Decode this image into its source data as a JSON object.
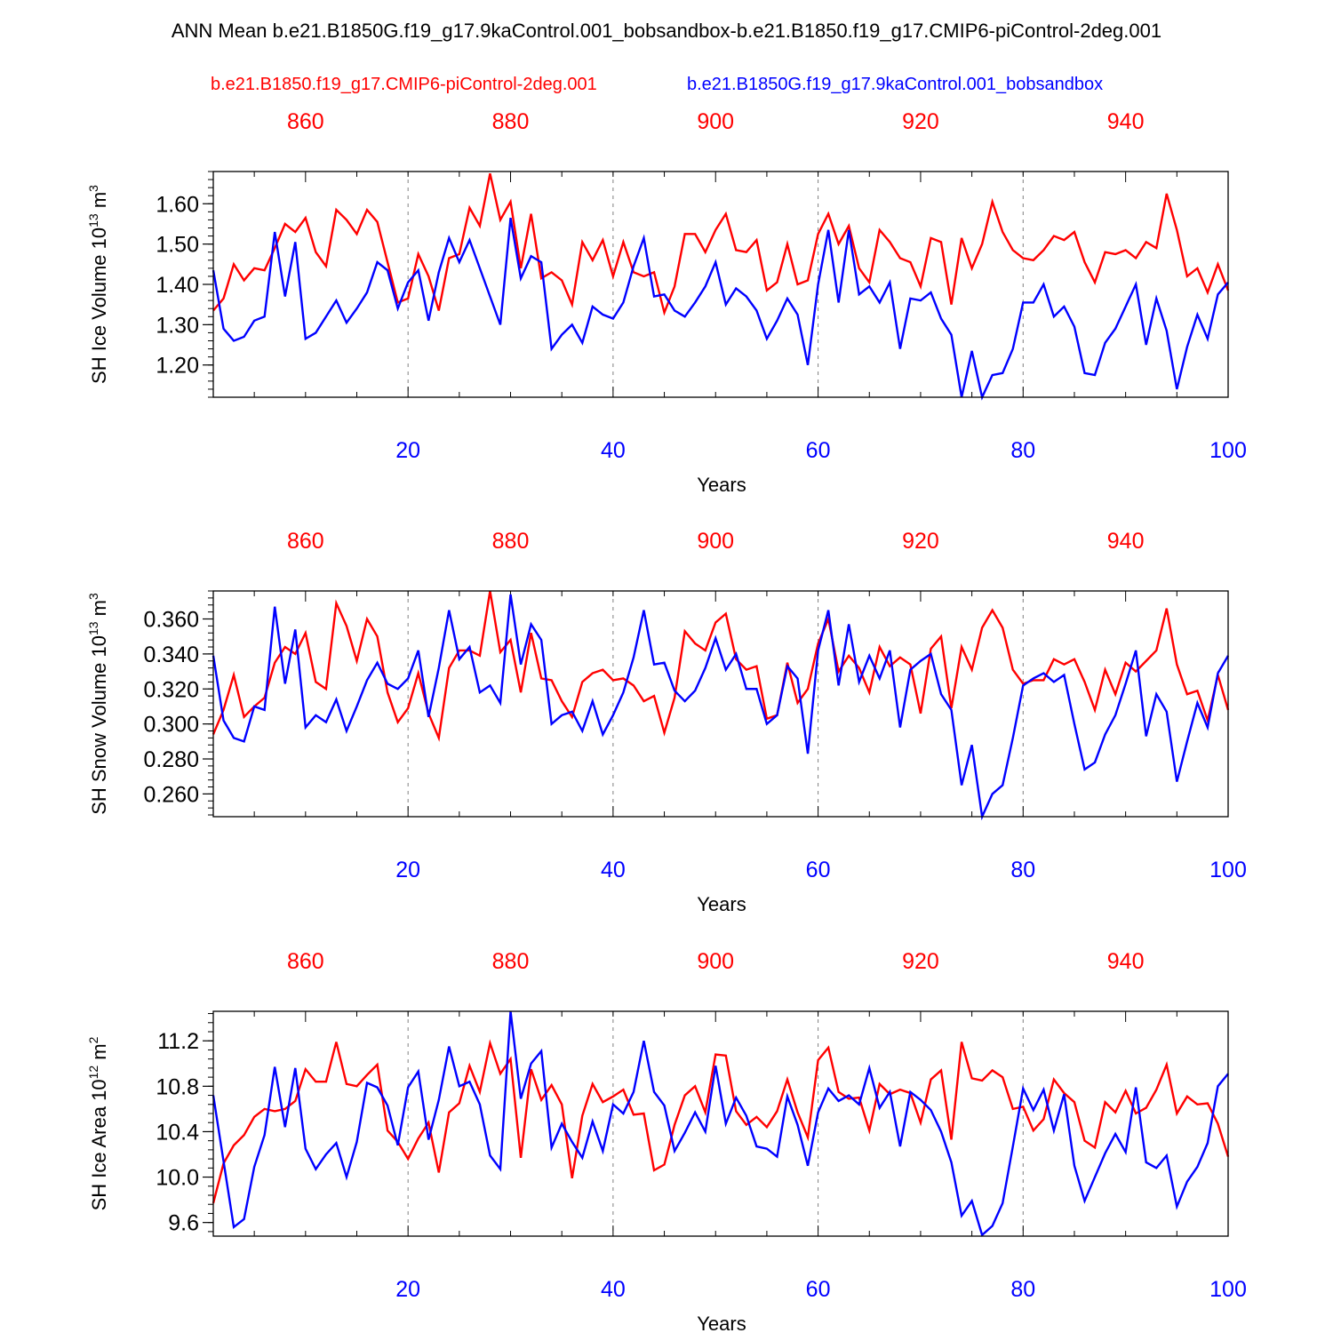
{
  "title": "ANN Mean b.e21.B1850G.f19_g17.9kaControl.001_bobsandbox-b.e21.B1850.f19_g17.CMIP6-piControl-2deg.001",
  "legend": {
    "red_label": "b.e21.B1850.f19_g17.CMIP6-piControl-2deg.001",
    "blue_label": "b.e21.B1850G.f19_g17.9kaControl.001_bobsandbox"
  },
  "colors": {
    "red": "#ff0000",
    "blue": "#0000ff",
    "grid": "#808080",
    "axis": "#000000"
  },
  "chart_data": [
    {
      "type": "line",
      "title": "",
      "ylabel": "SH Ice Volume 10",
      "ylabel_exp": "13",
      "ylabel_unit": "m",
      "ylabel_unit_exp": "3",
      "xlabel": "Years",
      "xlim": [
        1,
        100
      ],
      "ylim": [
        1.12,
        1.68
      ],
      "x_ticks": [
        20,
        40,
        60,
        80,
        100
      ],
      "x_ticks_top": [
        860,
        880,
        900,
        920,
        940
      ],
      "y_ticks": [
        "1.20",
        "1.30",
        "1.40",
        "1.50",
        "1.60"
      ],
      "series": [
        {
          "name": "b.e21.B1850.f19_g17.CMIP6-piControl-2deg.001",
          "color": "red",
          "values": [
            1.335,
            1.365,
            1.45,
            1.41,
            1.44,
            1.435,
            1.49,
            1.55,
            1.53,
            1.565,
            1.48,
            1.445,
            1.585,
            1.56,
            1.525,
            1.585,
            1.555,
            1.455,
            1.355,
            1.365,
            1.475,
            1.42,
            1.335,
            1.465,
            1.475,
            1.59,
            1.545,
            1.675,
            1.56,
            1.605,
            1.44,
            1.575,
            1.415,
            1.43,
            1.41,
            1.35,
            1.505,
            1.46,
            1.51,
            1.42,
            1.505,
            1.43,
            1.42,
            1.43,
            1.33,
            1.395,
            1.525,
            1.525,
            1.48,
            1.535,
            1.575,
            1.485,
            1.48,
            1.51,
            1.385,
            1.405,
            1.5,
            1.4,
            1.41,
            1.525,
            1.575,
            1.5,
            1.545,
            1.44,
            1.405,
            1.535,
            1.505,
            1.465,
            1.455,
            1.395,
            1.515,
            1.505,
            1.35,
            1.515,
            1.44,
            1.5,
            1.605,
            1.53,
            1.485,
            1.465,
            1.46,
            1.485,
            1.52,
            1.51,
            1.53,
            1.455,
            1.405,
            1.48,
            1.475,
            1.485,
            1.465,
            1.505,
            1.49,
            1.625,
            1.535,
            1.42,
            1.44,
            1.38,
            1.45,
            1.385
          ]
        },
        {
          "name": "b.e21.B1850G.f19_g17.9kaControl.001_bobsandbox",
          "color": "blue",
          "values": [
            1.435,
            1.29,
            1.26,
            1.27,
            1.31,
            1.32,
            1.53,
            1.37,
            1.505,
            1.265,
            1.28,
            1.32,
            1.36,
            1.305,
            1.34,
            1.38,
            1.455,
            1.435,
            1.34,
            1.405,
            1.435,
            1.31,
            1.43,
            1.515,
            1.455,
            1.51,
            1.44,
            1.37,
            1.3,
            1.565,
            1.415,
            1.47,
            1.455,
            1.24,
            1.275,
            1.3,
            1.255,
            1.345,
            1.325,
            1.315,
            1.355,
            1.445,
            1.515,
            1.37,
            1.375,
            1.335,
            1.32,
            1.355,
            1.395,
            1.455,
            1.35,
            1.39,
            1.37,
            1.335,
            1.265,
            1.31,
            1.365,
            1.325,
            1.2,
            1.4,
            1.535,
            1.355,
            1.535,
            1.375,
            1.395,
            1.355,
            1.405,
            1.24,
            1.365,
            1.36,
            1.38,
            1.315,
            1.275,
            1.12,
            1.235,
            1.12,
            1.175,
            1.18,
            1.24,
            1.355,
            1.355,
            1.4,
            1.32,
            1.345,
            1.295,
            1.18,
            1.175,
            1.255,
            1.29,
            1.345,
            1.4,
            1.25,
            1.365,
            1.285,
            1.14,
            1.245,
            1.325,
            1.265,
            1.375,
            1.405
          ]
        }
      ]
    },
    {
      "type": "line",
      "title": "",
      "ylabel": "SH Snow Volume 10",
      "ylabel_exp": "13",
      "ylabel_unit": "m",
      "ylabel_unit_exp": "3",
      "xlabel": "Years",
      "xlim": [
        1,
        100
      ],
      "ylim": [
        0.247,
        0.376
      ],
      "x_ticks": [
        20,
        40,
        60,
        80,
        100
      ],
      "x_ticks_top": [
        860,
        880,
        900,
        920,
        940
      ],
      "y_ticks": [
        "0.260",
        "0.280",
        "0.300",
        "0.320",
        "0.340",
        "0.360"
      ],
      "series": [
        {
          "name": "b.e21.B1850.f19_g17.CMIP6-piControl-2deg.001",
          "color": "red",
          "values": [
            0.294,
            0.308,
            0.328,
            0.304,
            0.31,
            0.315,
            0.335,
            0.344,
            0.34,
            0.352,
            0.324,
            0.32,
            0.369,
            0.356,
            0.336,
            0.36,
            0.35,
            0.318,
            0.301,
            0.309,
            0.329,
            0.306,
            0.292,
            0.332,
            0.342,
            0.342,
            0.339,
            0.376,
            0.341,
            0.348,
            0.318,
            0.352,
            0.326,
            0.325,
            0.313,
            0.304,
            0.324,
            0.329,
            0.331,
            0.325,
            0.326,
            0.322,
            0.313,
            0.316,
            0.295,
            0.315,
            0.353,
            0.346,
            0.342,
            0.358,
            0.363,
            0.337,
            0.331,
            0.333,
            0.303,
            0.305,
            0.335,
            0.312,
            0.32,
            0.346,
            0.36,
            0.33,
            0.339,
            0.332,
            0.318,
            0.344,
            0.333,
            0.338,
            0.334,
            0.306,
            0.343,
            0.35,
            0.309,
            0.344,
            0.331,
            0.355,
            0.365,
            0.355,
            0.331,
            0.323,
            0.325,
            0.325,
            0.337,
            0.334,
            0.337,
            0.324,
            0.308,
            0.331,
            0.317,
            0.335,
            0.33,
            0.336,
            0.342,
            0.366,
            0.334,
            0.317,
            0.319,
            0.302,
            0.328,
            0.308
          ]
        },
        {
          "name": "b.e21.B1850G.f19_g17.9kaControl.001_bobsandbox",
          "color": "blue",
          "values": [
            0.339,
            0.302,
            0.292,
            0.29,
            0.31,
            0.308,
            0.367,
            0.323,
            0.354,
            0.298,
            0.305,
            0.301,
            0.314,
            0.296,
            0.31,
            0.325,
            0.335,
            0.323,
            0.32,
            0.326,
            0.342,
            0.304,
            0.332,
            0.365,
            0.337,
            0.344,
            0.318,
            0.322,
            0.312,
            0.374,
            0.334,
            0.357,
            0.348,
            0.3,
            0.305,
            0.307,
            0.296,
            0.313,
            0.294,
            0.305,
            0.318,
            0.338,
            0.365,
            0.334,
            0.335,
            0.319,
            0.313,
            0.319,
            0.332,
            0.349,
            0.331,
            0.34,
            0.32,
            0.32,
            0.3,
            0.305,
            0.333,
            0.326,
            0.283,
            0.342,
            0.365,
            0.322,
            0.357,
            0.324,
            0.339,
            0.326,
            0.342,
            0.298,
            0.331,
            0.336,
            0.34,
            0.317,
            0.308,
            0.265,
            0.288,
            0.247,
            0.26,
            0.265,
            0.292,
            0.322,
            0.326,
            0.329,
            0.324,
            0.328,
            0.3,
            0.274,
            0.278,
            0.294,
            0.305,
            0.323,
            0.342,
            0.293,
            0.317,
            0.307,
            0.267,
            0.29,
            0.312,
            0.298,
            0.329,
            0.339
          ]
        }
      ]
    },
    {
      "type": "line",
      "title": "",
      "ylabel": "SH Ice Area 10",
      "ylabel_exp": "12",
      "ylabel_unit": "m",
      "ylabel_unit_exp": "2",
      "xlabel": "Years",
      "xlim": [
        1,
        100
      ],
      "ylim": [
        9.48,
        11.46
      ],
      "x_ticks": [
        20,
        40,
        60,
        80,
        100
      ],
      "x_ticks_top": [
        860,
        880,
        900,
        920,
        940
      ],
      "y_ticks": [
        "9.6",
        "10.0",
        "10.4",
        "10.8",
        "11.2"
      ],
      "series": [
        {
          "name": "b.e21.B1850.f19_g17.CMIP6-piControl-2deg.001",
          "color": "red",
          "values": [
            9.77,
            10.12,
            10.28,
            10.37,
            10.53,
            10.6,
            10.58,
            10.6,
            10.67,
            10.95,
            10.84,
            10.84,
            11.19,
            10.82,
            10.8,
            10.9,
            10.99,
            10.41,
            10.31,
            10.16,
            10.34,
            10.48,
            10.04,
            10.57,
            10.65,
            10.98,
            10.75,
            11.18,
            10.91,
            11.04,
            10.17,
            10.95,
            10.68,
            10.81,
            10.64,
            9.99,
            10.54,
            10.82,
            10.66,
            10.71,
            10.77,
            10.55,
            10.56,
            10.06,
            10.11,
            10.46,
            10.72,
            10.8,
            10.57,
            11.08,
            11.07,
            10.58,
            10.46,
            10.53,
            10.44,
            10.58,
            10.86,
            10.57,
            10.35,
            11.03,
            11.14,
            10.75,
            10.69,
            10.7,
            10.41,
            10.82,
            10.73,
            10.77,
            10.74,
            10.48,
            10.86,
            10.94,
            10.33,
            11.19,
            10.87,
            10.85,
            10.94,
            10.88,
            10.6,
            10.62,
            10.41,
            10.51,
            10.86,
            10.74,
            10.66,
            10.32,
            10.26,
            10.66,
            10.57,
            10.76,
            10.56,
            10.61,
            10.77,
            10.99,
            10.56,
            10.71,
            10.64,
            10.65,
            10.47,
            10.18
          ]
        },
        {
          "name": "b.e21.B1850G.f19_g17.9kaControl.001_bobsandbox",
          "color": "blue",
          "values": [
            10.72,
            10.14,
            9.56,
            9.63,
            10.09,
            10.37,
            10.97,
            10.44,
            10.96,
            10.25,
            10.07,
            10.2,
            10.3,
            10.0,
            10.31,
            10.83,
            10.79,
            10.63,
            10.28,
            10.79,
            10.93,
            10.33,
            10.68,
            11.15,
            10.8,
            10.84,
            10.64,
            10.19,
            10.07,
            11.46,
            10.69,
            11.0,
            11.11,
            10.26,
            10.47,
            10.31,
            10.17,
            10.49,
            10.23,
            10.64,
            10.56,
            10.75,
            11.2,
            10.75,
            10.63,
            10.23,
            10.39,
            10.57,
            10.4,
            10.98,
            10.47,
            10.7,
            10.54,
            10.27,
            10.25,
            10.18,
            10.71,
            10.46,
            10.1,
            10.57,
            10.78,
            10.67,
            10.72,
            10.64,
            10.96,
            10.61,
            10.75,
            10.27,
            10.75,
            10.68,
            10.59,
            10.4,
            10.13,
            9.66,
            9.79,
            9.49,
            9.57,
            9.77,
            10.27,
            10.78,
            10.59,
            10.77,
            10.41,
            10.73,
            10.1,
            9.79,
            10.0,
            10.21,
            10.38,
            10.22,
            10.79,
            10.13,
            10.08,
            10.19,
            9.74,
            9.96,
            10.09,
            10.3,
            10.8,
            10.91
          ]
        }
      ]
    }
  ]
}
